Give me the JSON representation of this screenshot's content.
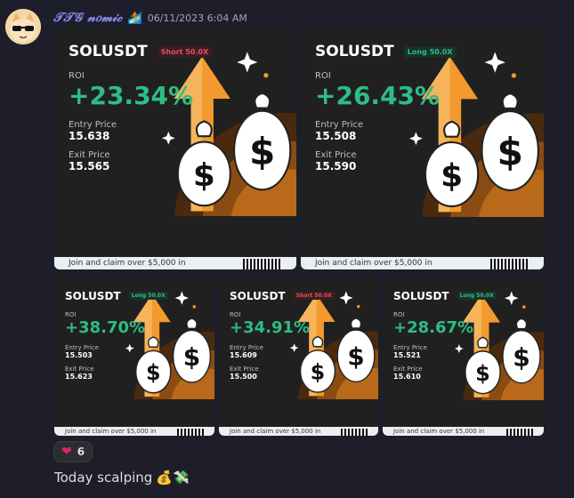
{
  "author": {
    "username": "𝒯𝒯𝒢 𝓃𝑜𝓂𝒾𝒸",
    "badge_emoji": "🏄",
    "timestamp": "06/11/2023 6:04 AM"
  },
  "cards": [
    {
      "pair": "SOLUSDT",
      "side": "Short 50.0X",
      "side_type": "short",
      "roi_label": "ROI",
      "roi": "+23.34%",
      "entry_label": "Entry Price",
      "entry": "15.638",
      "exit_label": "Exit Price",
      "exit": "15.565",
      "footer": "Join and claim over $5,000 in"
    },
    {
      "pair": "SOLUSDT",
      "side": "Long 50.0X",
      "side_type": "long",
      "roi_label": "ROI",
      "roi": "+26.43%",
      "entry_label": "Entry Price",
      "entry": "15.508",
      "exit_label": "Exit Price",
      "exit": "15.590",
      "footer": "Join and claim over $5,000 in"
    },
    {
      "pair": "SOLUSDT",
      "side": "Long 50.0X",
      "side_type": "long",
      "roi_label": "ROI",
      "roi": "+38.70%",
      "entry_label": "Entry Price",
      "entry": "15.503",
      "exit_label": "Exit Price",
      "exit": "15.623",
      "footer": "Join and claim over $5,000 in"
    },
    {
      "pair": "SOLUSDT",
      "side": "Short 50.0X",
      "side_type": "short",
      "roi_label": "ROI",
      "roi": "+34.91%",
      "entry_label": "Entry Price",
      "entry": "15.609",
      "exit_label": "Exit Price",
      "exit": "15.500",
      "footer": "Join and claim over $5,000 in"
    },
    {
      "pair": "SOLUSDT",
      "side": "Long 50.0X",
      "side_type": "long",
      "roi_label": "ROI",
      "roi": "+28.67%",
      "entry_label": "Entry Price",
      "entry": "15.521",
      "exit_label": "Exit Price",
      "exit": "15.610",
      "footer": "Join and claim over $5,000 in"
    }
  ],
  "reaction": {
    "emoji_icon": "heart-icon",
    "count": "6"
  },
  "message": {
    "text": "Today scalping",
    "emojis": "💰💸"
  },
  "colors": {
    "accent_green": "#2ebd85",
    "short_red": "#e0505f",
    "username": "#8f8cf7",
    "arrow_orange": "#f29a2e"
  }
}
